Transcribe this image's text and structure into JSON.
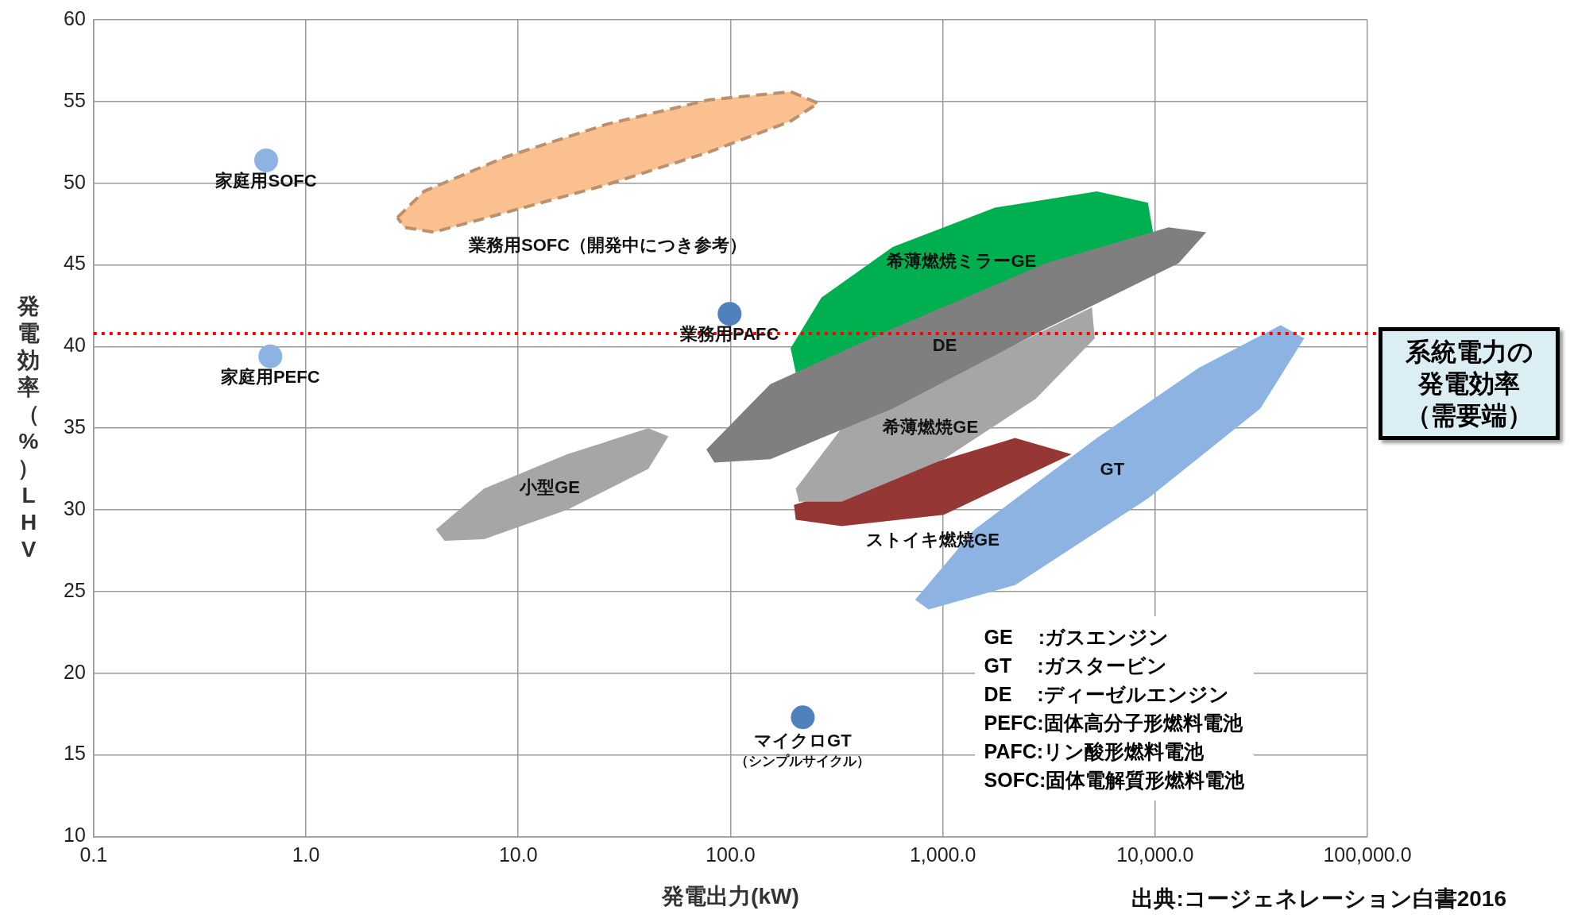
{
  "chart_data": {
    "type": "area",
    "xlabel": "発電出力(kW)",
    "ylabel": "発電効率（%）LHV",
    "log": "x",
    "grid": true,
    "legend": false,
    "xlim": [
      0.1,
      100000
    ],
    "xticks": [
      {
        "value": 0.1,
        "label": "0.1"
      },
      {
        "value": 1,
        "label": "1.0"
      },
      {
        "value": 10,
        "label": "10.0"
      },
      {
        "value": 100,
        "label": "100.0"
      },
      {
        "value": 1000,
        "label": "1,000.0"
      },
      {
        "value": 10000,
        "label": "10,000.0"
      },
      {
        "value": 100000,
        "label": "100,000.0"
      }
    ],
    "ylim": [
      10,
      60
    ],
    "yticks": [
      10,
      15,
      20,
      25,
      30,
      35,
      40,
      45,
      50,
      55,
      60
    ],
    "series": [
      {
        "name": "小型GE",
        "color": "#a6a6a6",
        "x": [
          4.1,
          6.9,
          17,
          41,
          51,
          41,
          17,
          6.9,
          4.5
        ],
        "values": [
          28.8,
          31.3,
          33.4,
          35.0,
          34.5,
          32.5,
          30.0,
          28.2,
          28.1
        ]
      },
      {
        "name": "業務用SOFC（開発中につき参考）",
        "color": "#fac090",
        "line_style": "dashed",
        "x": [
          2.7,
          3.6,
          8.7,
          26,
          79,
          192,
          259,
          192,
          79,
          26,
          8.7,
          4.0,
          2.9
        ],
        "values": [
          47.9,
          49.5,
          51.6,
          53.6,
          55.1,
          55.6,
          54.9,
          53.8,
          51.9,
          49.9,
          48.2,
          47.0,
          47.3
        ]
      },
      {
        "name": "DE",
        "color": "#7f7f7f",
        "x": [
          77,
          154,
          581,
          3060,
          11560,
          17400,
          12900,
          3060,
          581,
          154,
          84
        ],
        "values": [
          33.7,
          37.7,
          41.1,
          45.1,
          47.3,
          47.0,
          45.1,
          41.1,
          36.2,
          33.1,
          32.9
        ]
      },
      {
        "name": "希薄燃焼ミラーGE",
        "color": "#00b050",
        "x": [
          192,
          268,
          581,
          1760,
          5320,
          9250,
          9780,
          5320,
          1760,
          581,
          299,
          203
        ],
        "values": [
          39.9,
          43.0,
          46.1,
          48.5,
          49.5,
          48.8,
          47.0,
          null,
          null,
          null,
          null,
          38.4
        ]
      },
      {
        "name": "希薄燃焼GE",
        "color": "#a6a6a6",
        "x": [
          203,
          334,
          1010,
          3060,
          5040,
          5200,
          2740,
          1010,
          334,
          210
        ],
        "values": [
          31.3,
          35.0,
          null,
          null,
          42.4,
          40.5,
          36.8,
          33.1,
          30.5,
          30.5
        ]
      },
      {
        "name": "GT",
        "color": "#8db3e2",
        "x": [
          741,
          1410,
          5320,
          16100,
          39000,
          50400,
          31300,
          9250,
          2190,
          857
        ],
        "values": [
          24.5,
          28.8,
          34.4,
          38.7,
          41.3,
          40.5,
          36.2,
          30.7,
          25.4,
          23.9
        ]
      },
      {
        "name": "ストイキ燃焼GE",
        "color": "#953735",
        "x": [
          199,
          334,
          1010,
          2190,
          4040,
          3420,
          1010,
          334,
          203
        ],
        "values": [
          30.3,
          null,
          null,
          34.4,
          33.4,
          null,
          29.7,
          29.0,
          29.4
        ]
      },
      {
        "type": "scatter",
        "name": "家庭用SOFC",
        "color": "#8db3e2",
        "x": [
          0.65
        ],
        "values": [
          51.4
        ]
      },
      {
        "type": "scatter",
        "name": "家庭用PEFC",
        "color": "#8db3e2",
        "x": [
          0.68
        ],
        "values": [
          39.4
        ]
      },
      {
        "type": "scatter",
        "name": "業務用PAFC",
        "color": "#4f81bd",
        "x": [
          99
        ],
        "values": [
          42.0
        ]
      },
      {
        "type": "scatter",
        "name": "マイクロGT（シンプルサイクル）",
        "color": "#4f81bd",
        "x": [
          219
        ],
        "values": [
          17.3
        ]
      }
    ],
    "ref_lines": [
      {
        "axis": "y",
        "value": 40.8,
        "label": "系統電力の発電効率（需要端）",
        "color": "#ff0000",
        "line_style": "dotted"
      }
    ],
    "annotations": [
      "GE　 :ガスエンジン",
      "GT　 :ガスタービン",
      "DE　 :ディーゼルエンジン",
      "PEFC:固体高分子形燃料電池",
      "PAFC:リン酸形燃料電池",
      "SOFC:固体電解質形燃料電池",
      "出典:コージェネレーション白書2016"
    ]
  }
}
